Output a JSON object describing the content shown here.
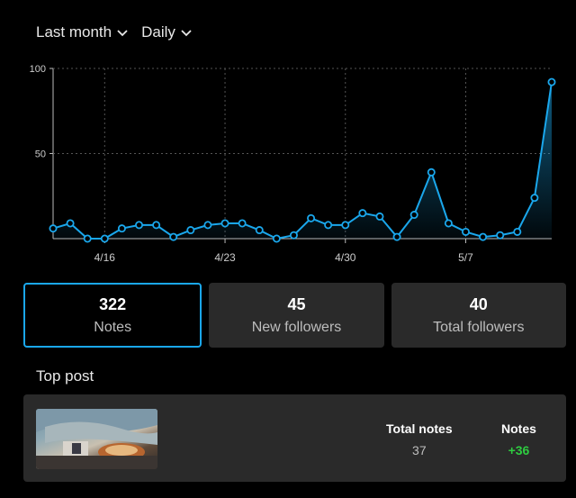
{
  "filters": {
    "period": "Last month",
    "interval": "Daily"
  },
  "chart_data": {
    "type": "area",
    "categories": [
      "4/13",
      "4/14",
      "4/15",
      "4/16",
      "4/17",
      "4/18",
      "4/19",
      "4/20",
      "4/21",
      "4/22",
      "4/23",
      "4/24",
      "4/25",
      "4/26",
      "4/27",
      "4/28",
      "4/29",
      "4/30",
      "5/1",
      "5/2",
      "5/3",
      "5/4",
      "5/5",
      "5/6",
      "5/7",
      "5/8",
      "5/9",
      "5/10",
      "5/11",
      "5/12"
    ],
    "values": [
      6,
      9,
      0,
      0,
      6,
      8,
      8,
      1,
      5,
      8,
      9,
      9,
      5,
      0,
      2,
      12,
      8,
      8,
      15,
      13,
      1,
      14,
      39,
      9,
      4,
      1,
      2,
      4,
      24,
      92
    ],
    "x_tick_labels": [
      "4/16",
      "4/23",
      "4/30",
      "5/7"
    ],
    "x_tick_indices": [
      3,
      10,
      17,
      24
    ],
    "y_ticks": [
      50,
      100
    ],
    "ylim": [
      0,
      100
    ],
    "grid": true,
    "line_color": "#1aa7ec"
  },
  "stats": [
    {
      "value": "322",
      "label": "Notes",
      "active": true
    },
    {
      "value": "45",
      "label": "New followers",
      "active": false
    },
    {
      "value": "40",
      "label": "Total followers",
      "active": false
    }
  ],
  "top_post": {
    "title": "Top post",
    "total_notes_label": "Total notes",
    "total_notes_value": "37",
    "notes_label": "Notes",
    "notes_value": "+36"
  },
  "colors": {
    "accent": "#1aa7ec",
    "positive": "#2ecc40"
  }
}
